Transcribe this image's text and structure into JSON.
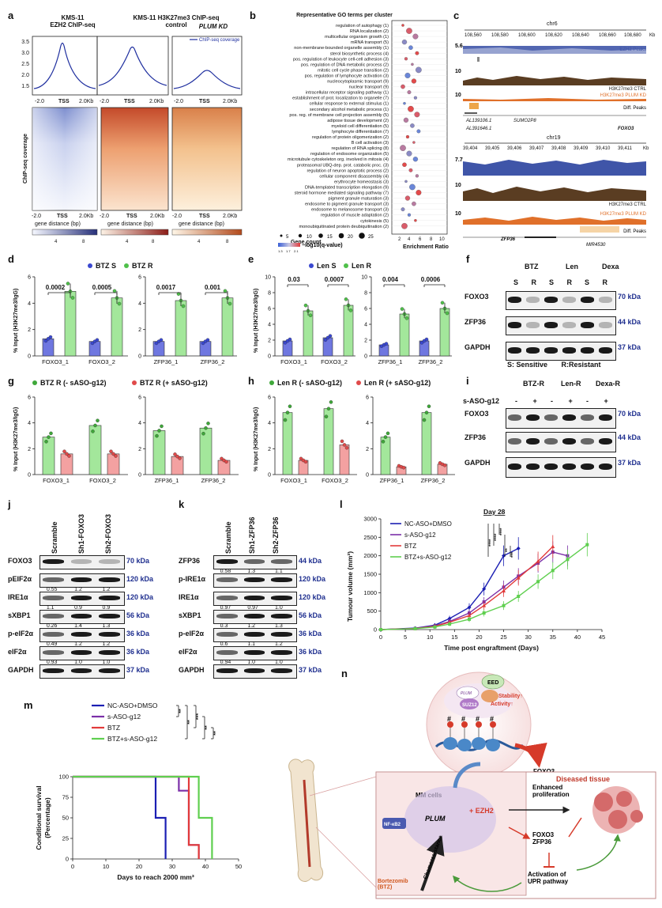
{
  "panels": {
    "a": {
      "letter": "a",
      "col1_title": "KMS-11\nEZH2 ChIP-seq",
      "col2_title": "KMS-11 H3K27me3 ChIP-seq\ncontrol",
      "col3_title": "PLUM KD",
      "legend": "ChIP-seq coverage",
      "y_ticks": [
        "3.5",
        "3.0",
        "2.5",
        "2.0",
        "1.5"
      ],
      "x_ticks": [
        "-2.0",
        "TSS",
        "2.0Kb"
      ],
      "heat_ylabel": "ChIP-seq coverage",
      "xlabel": "gene distance (bp)",
      "cbar_ticks": [
        "4",
        "8"
      ]
    },
    "b": {
      "letter": "b",
      "title": "Representative GO terms per cluster",
      "terms": [
        "regulation of autophagy (1)",
        "RNA localization (2)",
        "multicellular organism growth (1)",
        "mRNA transport (5)",
        "non-membrane-bounded organelle assembly (1)",
        "sterol biosynthetic process (4)",
        "pos. regulation of leukocyte cell-cell adhesion (3)",
        "pos. regulation of DNA metabolic process (2)",
        "mitotic cell cycle phase transition (2)",
        "pos. regulation of lymphocyte activation (3)",
        "nucleocytoplasmic transport (9)",
        "nuclear transport (9)",
        "intracellular receptor signaling pathway (1)",
        "establishment of prot. localization to organelle (7)",
        "cellular response to external stimulus (1)",
        "secondary alcohol metabolic process (1)",
        "pos. reg. of membrane cell projection assembly (5)",
        "adipose tissue development (2)",
        "myeloid cell differentiation (5)",
        "lymphocyte differentiation (7)",
        "regulation of protein oligomerization (2)",
        "B cell activation (3)",
        "regulation of RNA splicing (8)",
        "regulation of endosome organization (5)",
        "microtubule cytoskeleton org. involved in mitosis (4)",
        "proteasomal UBQ-dep. prot. catabolic proc. (3)",
        "regulation of neuron apoptotic process (2)",
        "cellular component disassembly (4)",
        "erythrocyte homeostasis (3)",
        "DNA-templated transcription elongation (9)",
        "steroid hormone mediated signaling pathway (7)",
        "pigment granule maturation (3)",
        "endosome to pigment granule transport (3)",
        "endosome to melanosome transport (3)",
        "regulation of muscle adaptation (2)",
        "cytokinesis (5)",
        "monoubiquitinated protein deubiquitination (2)"
      ],
      "x_ticks": [
        "2",
        "4",
        "6",
        "8",
        "10"
      ],
      "xlabel": "Enrichment Ratio",
      "gene_count_label": "Gene count",
      "gene_count_values": [
        "5",
        "10",
        "15",
        "20",
        "25"
      ],
      "qvalue_label": "−log10(q-value)",
      "qvalue_ticks": [
        "1.3",
        "1.7",
        "2.1"
      ]
    },
    "c": {
      "letter": "c",
      "chr_top": "chr6",
      "coords_top": [
        "108,560",
        "108,580",
        "108,600",
        "108,620",
        "108,640",
        "108,660",
        "108,680",
        "Kb"
      ],
      "tracks_top": [
        {
          "scale": "5.6",
          "label": "EZH2 Peaks"
        },
        {
          "scale": "10",
          "label": "H3K27me3 CTRL"
        },
        {
          "scale": "10",
          "label": "H3K27me3 PLUM KD"
        }
      ],
      "diff_peaks": "Diff. Peaks",
      "genes_top": [
        "AL139106.1",
        "SUMO2P8",
        "AL391646.1",
        "FOXO3"
      ],
      "chr_bottom": "chr19",
      "coords_bottom": [
        "39,404",
        "39,405",
        "39,406",
        "39,407",
        "39,408",
        "39,409",
        "39,410",
        "39,411",
        "Kb"
      ],
      "tracks_bottom": [
        {
          "scale": "7.7",
          "label": "EZH2 Peaks"
        },
        {
          "scale": "10",
          "label": "H3K27me3 CTRL"
        },
        {
          "scale": "10",
          "label": "H3K27me3 PLUM KD"
        }
      ],
      "genes_bottom": [
        "ZFP36",
        "MIR4530"
      ]
    },
    "d": {
      "letter": "d",
      "legend": [
        "BTZ S",
        "BTZ R"
      ],
      "ylabel": "% Input (H3K27me3/IgG)",
      "pvals": [
        "0.0002",
        "0.0005",
        "0.0017",
        "0.001"
      ],
      "groups": [
        "FOXO3_1",
        "FOXO3_2",
        "ZFP36_1",
        "ZFP36_2"
      ]
    },
    "e": {
      "letter": "e",
      "legend": [
        "Len S",
        "Len R"
      ],
      "ylabel": "% Input (H3K27me3/IgG)",
      "pvals": [
        "0.03",
        "0.0007",
        "0.004",
        "0.0006"
      ],
      "groups": [
        "FOXO3_1",
        "FOXO3_2",
        "ZFP36_1",
        "ZFP36_2"
      ]
    },
    "f": {
      "letter": "f",
      "groups": [
        "BTZ",
        "Len",
        "Dexa"
      ],
      "lanes": [
        "S",
        "R",
        "S",
        "R",
        "S",
        "R"
      ],
      "rows": [
        {
          "name": "FOXO3",
          "kda": "70 kDa"
        },
        {
          "name": "ZFP36",
          "kda": "44 kDa"
        },
        {
          "name": "GAPDH",
          "kda": "37 kDa"
        }
      ],
      "footer": "S: Sensitive       R:Resistant"
    },
    "g": {
      "letter": "g",
      "legend": [
        "BTZ R (- sASO-g12)",
        "BTZ R (+ sASO-g12)"
      ],
      "ylabel": "% Input (H3K27me3/IgG)",
      "groups": [
        "FOXO3_1",
        "FOXO3_2",
        "ZFP36_1",
        "ZFP36_2"
      ]
    },
    "h": {
      "letter": "h",
      "legend": [
        "Len R (- sASO-g12)",
        "Len R (+ sASO-g12)"
      ],
      "ylabel": "% Input (H3K27me3/IgG)",
      "groups": [
        "FOXO3_1",
        "FOXO3_2",
        "ZFP36_1",
        "ZFP36_2"
      ]
    },
    "i": {
      "letter": "i",
      "groups": [
        "BTZ-R",
        "Len-R",
        "Dexa-R"
      ],
      "treat_label": "s-ASO-g12",
      "signs": [
        "-",
        "+",
        "-",
        "+",
        "-",
        "+"
      ],
      "rows": [
        {
          "name": "FOXO3",
          "kda": "70 kDa"
        },
        {
          "name": "ZFP36",
          "kda": "44 kDa"
        },
        {
          "name": "GAPDH",
          "kda": "37 kDa"
        }
      ]
    },
    "j": {
      "letter": "j",
      "lanes": [
        "Scramble",
        "Sh1-FOXO3",
        "Sh2-FOXO3"
      ],
      "rows": [
        {
          "name": "FOXO3",
          "kda": "70 kDa",
          "quant": null
        },
        {
          "name": "pEIF2α",
          "kda": "120 kDa",
          "quant": [
            "0.55",
            "1.2",
            "1.2"
          ]
        },
        {
          "name": "IRE1α",
          "kda": "120 kDa",
          "quant": [
            "1.1",
            "0.9",
            "0.9"
          ]
        },
        {
          "name": "sXBP1",
          "kda": "56 kDa",
          "quant": [
            "0.26",
            "1.4",
            "1.3"
          ]
        },
        {
          "name": "p-elF2α",
          "kda": "36 kDa",
          "quant": [
            "0.49",
            "1.2",
            "1.2"
          ]
        },
        {
          "name": "elF2α",
          "kda": "36 kDa",
          "quant": [
            "0.93",
            "1.0",
            "1.0"
          ]
        },
        {
          "name": "GAPDH",
          "kda": "37 kDa",
          "quant": null
        }
      ]
    },
    "k": {
      "letter": "k",
      "lanes": [
        "Scramble",
        "Sh1-ZFP36",
        "Sh2-ZFP36"
      ],
      "rows": [
        {
          "name": "ZFP36",
          "kda": "44 kDa",
          "quant": [
            "0.58",
            "1.3",
            "1.1"
          ]
        },
        {
          "name": "p-IRE1α",
          "kda": "120 kDa",
          "quant": null
        },
        {
          "name": "IRE1α",
          "kda": "120 kDa",
          "quant": [
            "0.97",
            "0.97",
            "1.0"
          ]
        },
        {
          "name": "sXBP1",
          "kda": "56 kDa",
          "quant": [
            "0.3",
            "1.2",
            "1.3"
          ]
        },
        {
          "name": "p-elF2α",
          "kda": "36 kDa",
          "quant": [
            "0.6",
            "1.1",
            "1.2"
          ]
        },
        {
          "name": "elF2α",
          "kda": "36 kDa",
          "quant": [
            "0.94",
            "1.0",
            "1.0"
          ]
        },
        {
          "name": "GAPDH",
          "kda": "37 kDa",
          "quant": null
        }
      ]
    },
    "l": {
      "letter": "l",
      "day_label": "Day 28",
      "sig": [
        "****",
        "****",
        "****",
        "**",
        "***"
      ]
    },
    "m": {
      "letter": "m",
      "sig": [
        "**",
        "**",
        "***",
        "**",
        "**"
      ]
    },
    "n": {
      "letter": "n",
      "complex": [
        "EED",
        "PLUM",
        "EZH2",
        "SUZ12"
      ],
      "stability": "Stability↑",
      "activity": "Activity↑",
      "hash": "#",
      "targets": "FOXO3\nZFP36",
      "diseased": "Diseased tissue",
      "mm_cells": "MM cells",
      "nfkb": "NF-κB2",
      "plum": "PLUM",
      "ezh2": "+ EZH2",
      "chemo": "Chemoresistance",
      "drug": "Bortezomib\n(BTZ)",
      "prolif": "Enhanced\nproliferation",
      "mid": "FOXO3\nZFP36",
      "upr": "Activation of\nUPR pathway"
    }
  },
  "chart_data": [
    {
      "panel": "d",
      "type": "bar",
      "ylabel": "% Input (H3K27me3/IgG)",
      "ylim": [
        0,
        6
      ],
      "categories": [
        "FOXO3_1",
        "FOXO3_2",
        "ZFP36_1",
        "ZFP36_2"
      ],
      "series": [
        {
          "name": "BTZ S",
          "values": [
            1.3,
            1.1,
            1.1,
            1.1
          ]
        },
        {
          "name": "BTZ R",
          "values": [
            4.9,
            4.4,
            4.2,
            4.4
          ]
        }
      ],
      "annotations": [
        "0.0002",
        "0.0005",
        "0.0017",
        "0.001"
      ]
    },
    {
      "panel": "e",
      "type": "bar",
      "ylabel": "% Input (H3K27me3/IgG)",
      "ylim": [
        0,
        10
      ],
      "categories": [
        "FOXO3_1",
        "FOXO3_2",
        "ZFP36_1",
        "ZFP36_2"
      ],
      "series": [
        {
          "name": "Len S",
          "values": [
            1.9,
            2.3,
            1.4,
            1.9
          ]
        },
        {
          "name": "Len R",
          "values": [
            5.7,
            6.4,
            5.3,
            6.0
          ]
        }
      ],
      "annotations": [
        "0.03",
        "0.0007",
        "0.004",
        "0.0006"
      ]
    },
    {
      "panel": "g",
      "type": "bar",
      "ylabel": "% Input (H3K27me3/IgG)",
      "ylim": [
        0,
        6
      ],
      "categories": [
        "FOXO3_1",
        "FOXO3_2",
        "ZFP36_1",
        "ZFP36_2"
      ],
      "series": [
        {
          "name": "BTZ R (- sASO-g12)",
          "values": [
            2.9,
            3.8,
            3.4,
            3.6
          ]
        },
        {
          "name": "BTZ R (+ sASO-g12)",
          "values": [
            1.6,
            1.6,
            1.4,
            1.1
          ]
        }
      ]
    },
    {
      "panel": "h",
      "type": "bar",
      "ylabel": "% Input (H3K27me3/IgG)",
      "ylim": [
        0,
        6
      ],
      "categories": [
        "FOXO3_1",
        "FOXO3_2",
        "ZFP36_1",
        "ZFP36_2"
      ],
      "series": [
        {
          "name": "Len R (- sASO-g12)",
          "values": [
            4.8,
            5.1,
            2.9,
            4.8
          ]
        },
        {
          "name": "Len R (+ sASO-g12)",
          "values": [
            1.1,
            2.3,
            0.6,
            0.8
          ]
        }
      ]
    },
    {
      "panel": "l",
      "type": "line",
      "xlabel": "Time post engraftment (Days)",
      "ylabel": "Tumour volume (mm³)",
      "xlim": [
        0,
        45
      ],
      "ylim": [
        0,
        3000
      ],
      "x_ticks": [
        0,
        5,
        10,
        15,
        20,
        25,
        30,
        35,
        40,
        45
      ],
      "y_ticks": [
        0,
        500,
        1000,
        1500,
        2000,
        2500,
        3000
      ],
      "series": [
        {
          "name": "NC-ASO+DMSO",
          "color": "#1b1fb3",
          "x": [
            0,
            7,
            11,
            14,
            18,
            21,
            25,
            28
          ],
          "y": [
            0,
            40,
            120,
            300,
            600,
            1100,
            2000,
            2200
          ]
        },
        {
          "name": "s-ASO-g12",
          "color": "#7b2fa8",
          "x": [
            0,
            7,
            11,
            14,
            18,
            21,
            25,
            28,
            32,
            35,
            38
          ],
          "y": [
            0,
            30,
            100,
            220,
            450,
            750,
            1150,
            1450,
            1800,
            2100,
            2000
          ]
        },
        {
          "name": "BTZ",
          "color": "#e23a3a",
          "x": [
            0,
            7,
            11,
            14,
            18,
            21,
            25,
            28,
            32,
            35
          ],
          "y": [
            0,
            30,
            90,
            200,
            380,
            650,
            1050,
            1400,
            1850,
            2250
          ]
        },
        {
          "name": "BTZ+s-ASO-g12",
          "color": "#5fcf4f",
          "x": [
            0,
            7,
            11,
            14,
            18,
            21,
            25,
            28,
            32,
            35,
            38,
            42
          ],
          "y": [
            0,
            25,
            70,
            150,
            280,
            450,
            650,
            900,
            1300,
            1600,
            1900,
            2300
          ]
        }
      ]
    },
    {
      "panel": "m",
      "type": "line",
      "xlabel": "Days to reach 2000 mm³",
      "ylabel": "Conditional survival (Percentage)",
      "xlim": [
        0,
        50
      ],
      "ylim": [
        0,
        100
      ],
      "x_ticks": [
        0,
        10,
        20,
        30,
        40,
        50
      ],
      "y_ticks": [
        0,
        25,
        50,
        75,
        100
      ],
      "series": [
        {
          "name": "NC-ASO+DMSO",
          "color": "#1b1fb3",
          "x": [
            0,
            25,
            25,
            28,
            28
          ],
          "y": [
            100,
            100,
            50,
            50,
            0
          ]
        },
        {
          "name": "s-ASO-g12",
          "color": "#7b2fa8",
          "x": [
            0,
            32,
            32,
            35,
            35,
            38,
            38
          ],
          "y": [
            100,
            100,
            83,
            83,
            17,
            17,
            0
          ]
        },
        {
          "name": "BTZ",
          "color": "#e23a3a",
          "x": [
            0,
            35,
            35,
            38,
            38
          ],
          "y": [
            100,
            100,
            17,
            17,
            0
          ]
        },
        {
          "name": "BTZ+s-ASO-g12",
          "color": "#5fcf4f",
          "x": [
            0,
            38,
            38,
            42,
            42
          ],
          "y": [
            100,
            100,
            50,
            50,
            0
          ]
        }
      ]
    }
  ]
}
